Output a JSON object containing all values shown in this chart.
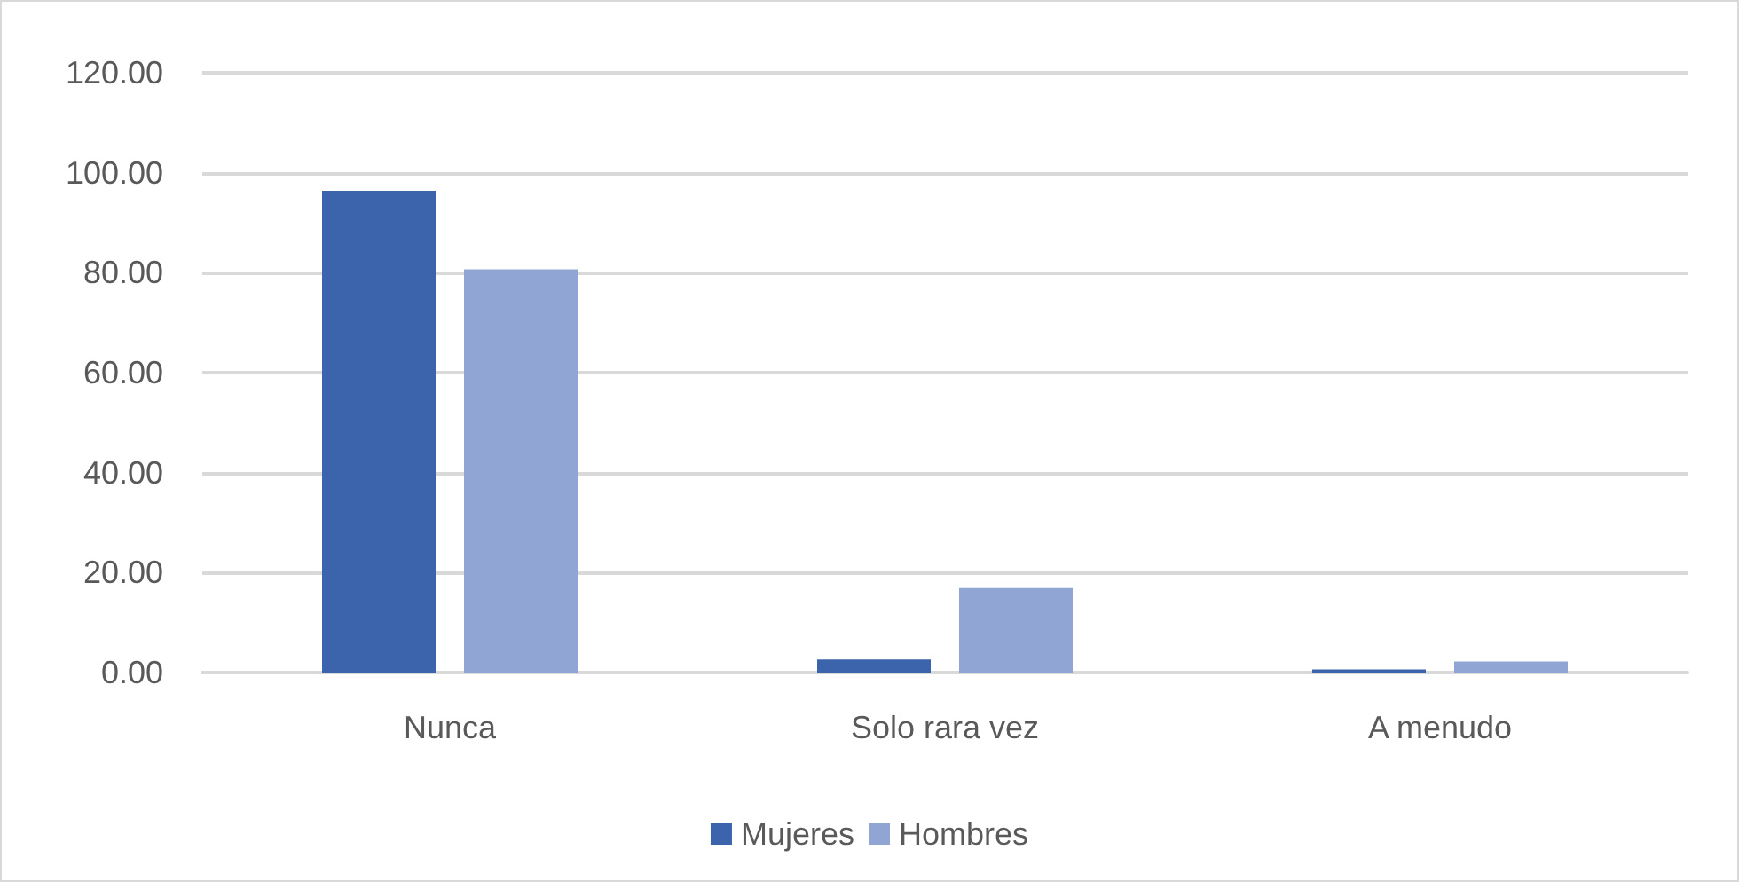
{
  "chart_data": {
    "type": "bar",
    "categories": [
      "Nunca",
      "Solo rara vez",
      "A menudo"
    ],
    "series": [
      {
        "name": "Mujeres",
        "color": "#3c64ad",
        "values": [
          96.4,
          2.6,
          0.6
        ]
      },
      {
        "name": "Hombres",
        "color": "#91a5d5",
        "values": [
          80.7,
          16.9,
          2.2
        ]
      }
    ],
    "ylim": [
      0,
      120
    ],
    "yticks": [
      {
        "value": 0,
        "label": "0.00"
      },
      {
        "value": 20,
        "label": "20.00"
      },
      {
        "value": 40,
        "label": "40.00"
      },
      {
        "value": 60,
        "label": "60.00"
      },
      {
        "value": 80,
        "label": "80.00"
      },
      {
        "value": 100,
        "label": "100.00"
      },
      {
        "value": 120,
        "label": "120.00"
      }
    ],
    "grid": "y",
    "legend": "bottom"
  }
}
